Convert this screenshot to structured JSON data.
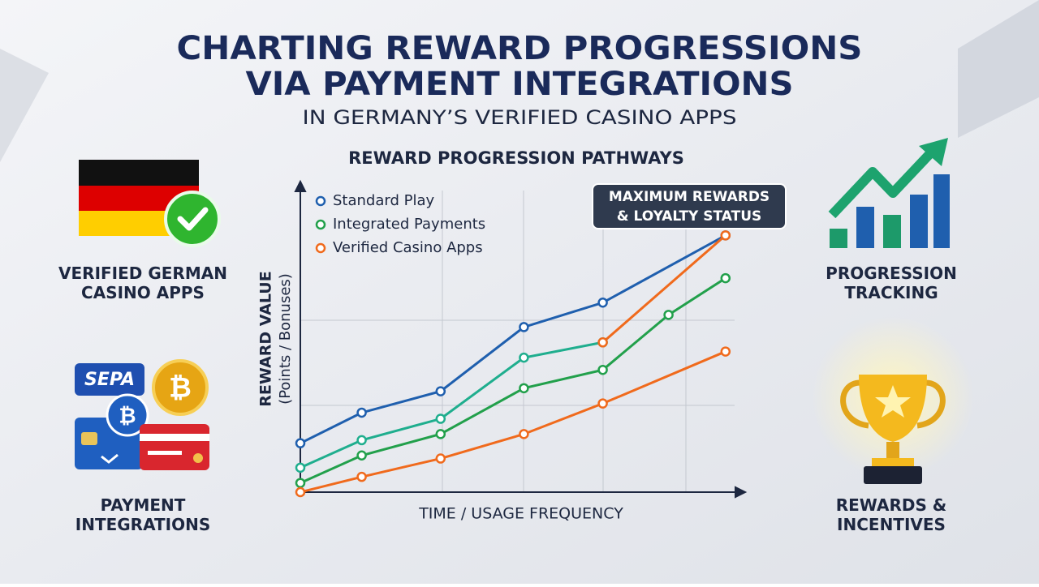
{
  "header": {
    "title": [
      "CHARTING REWARD PROGRESSIONS",
      "VIA PAYMENT INTEGRATIONS"
    ],
    "subtitle": "IN GERMANY’S VERIFIED CASINO APPS"
  },
  "panels": {
    "german_apps": "VERIFIED GERMAN CASINO APPS",
    "sepa_badge": "SEPA",
    "payments": "PAYMENT INTEGRATIONS",
    "tracking": "PROGRESSION TRACKING",
    "rewards": "REWARDS & INCENTIVES"
  },
  "chart_data": {
    "type": "line",
    "title": "REWARD PROGRESSION PATHWAYS",
    "x_label": "TIME / USAGE FREQUENCY",
    "y_label": [
      "REWARD VALUE",
      "(Points / Bonuses)"
    ],
    "annotation": [
      "MAXIMUM REWARDS",
      "& LOYALTY STATUS"
    ],
    "xlim": [
      0,
      100
    ],
    "ylim": [
      0,
      100
    ],
    "series": [
      {
        "name": "Standard Play",
        "color": "#1f5fae",
        "x": [
          0,
          14,
          32,
          51,
          69,
          97
        ],
        "values": [
          16,
          26,
          33,
          54,
          62,
          84
        ]
      },
      {
        "name": "Integrated Payments",
        "color": "#22a04b",
        "x": [
          0,
          14,
          32,
          51,
          69,
          84,
          97
        ],
        "values": [
          3,
          12,
          19,
          34,
          40,
          58,
          70
        ]
      },
      {
        "name": "Verified Casino Apps",
        "color": "#f06a1c",
        "x": [
          0,
          14,
          32,
          51,
          69,
          97
        ],
        "values": [
          0,
          5,
          11,
          19,
          29,
          46
        ]
      },
      {
        "color": "#1fae8e",
        "x": [
          0,
          14,
          32,
          51,
          69
        ],
        "values": [
          8,
          17,
          24,
          44,
          49
        ]
      },
      {
        "color": "#f06a1c",
        "x": [
          69,
          97
        ],
        "values": [
          49,
          84
        ]
      }
    ]
  }
}
